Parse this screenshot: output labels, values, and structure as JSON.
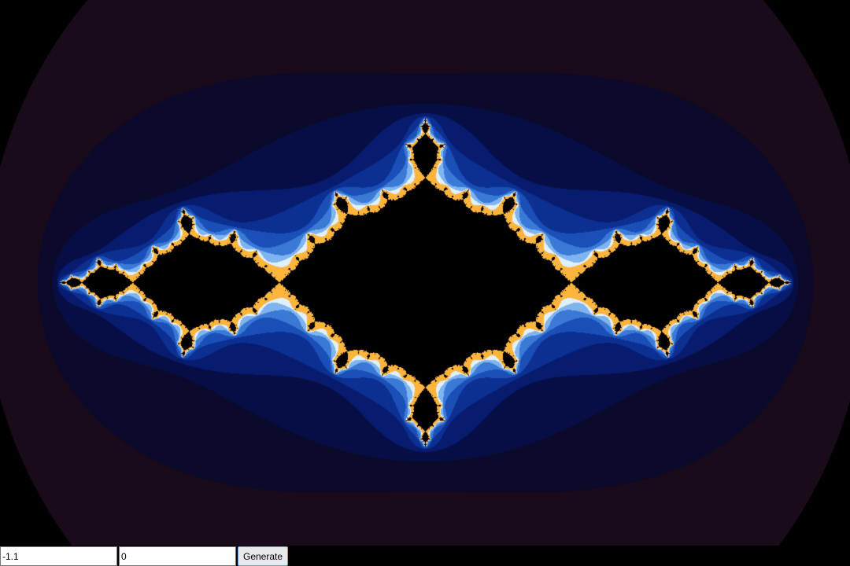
{
  "fractal": {
    "type": "julia-set",
    "palette": [
      "#1a0b1a",
      "#0b0a2a",
      "#060e45",
      "#071c6e",
      "#0c2f92",
      "#1a4fb8",
      "#3a7ad6",
      "#7fb4ee",
      "#dff0ff",
      "#ffb43c",
      "#000000"
    ]
  },
  "controls": {
    "real_value": "-1.1",
    "imag_value": "0",
    "generate_label": "Generate"
  }
}
